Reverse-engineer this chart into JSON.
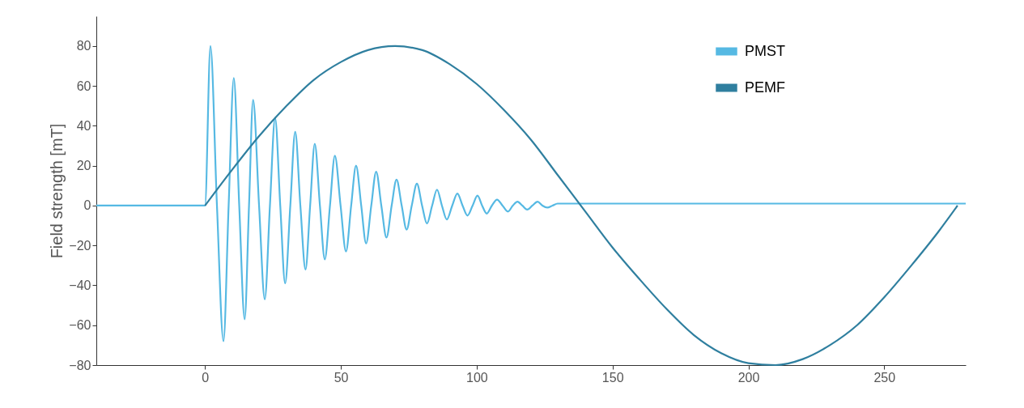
{
  "chart_data": {
    "type": "line",
    "ylabel": "Field strength [mT]",
    "xlim": [
      -40,
      280
    ],
    "ylim": [
      -80,
      95
    ],
    "xticks": [
      0,
      50,
      100,
      150,
      200,
      250
    ],
    "yticks": [
      -80,
      -60,
      -40,
      -20,
      0,
      20,
      40,
      60,
      80
    ],
    "grid": false,
    "legend": "top right",
    "series": [
      {
        "name": "PMST",
        "color": "#56b9e3",
        "x": [
          -40,
          0,
          2,
          4.4,
          6.8,
          8.7,
          10.6,
          12.6,
          14.6,
          16.2,
          17.7,
          19.9,
          22,
          23.9,
          25.8,
          27.7,
          29.5,
          31.4,
          33.2,
          35.1,
          37,
          38.7,
          40.4,
          42.3,
          44.1,
          46,
          47.8,
          49.9,
          51.9,
          53.8,
          55.6,
          57.5,
          59.3,
          61.2,
          63,
          64.9,
          66.8,
          68.7,
          70.5,
          72.4,
          74.2,
          76.1,
          78,
          79.9,
          81.7,
          83.6,
          85.4,
          87.2,
          89,
          91,
          92.9,
          94.8,
          96.6,
          98.5,
          100.3,
          102,
          103.7,
          105.6,
          107.5,
          109.5,
          111.5,
          113.3,
          115,
          116.8,
          118.6,
          120.5,
          122.4,
          124.2,
          126,
          127.9,
          129.8,
          132,
          280
        ],
        "values": [
          0,
          0,
          80,
          0,
          -68,
          0,
          64,
          0,
          -57,
          0,
          53,
          0,
          -47,
          0,
          44,
          0,
          -39,
          0,
          37,
          0,
          -32,
          0,
          31,
          0,
          -27,
          0,
          25,
          0,
          -23,
          0,
          20,
          0,
          -19,
          0,
          17,
          0,
          -16,
          0,
          13,
          0,
          -12,
          0,
          11,
          0,
          -9,
          0,
          8,
          0,
          -7,
          0,
          6,
          0,
          -5,
          0,
          5,
          0,
          -4,
          0,
          3,
          0,
          -3,
          0,
          2,
          0,
          -2,
          0,
          2,
          0,
          -1,
          0,
          1,
          1,
          1
        ]
      },
      {
        "name": "PEMF",
        "color": "#2f7f9f",
        "x": [
          0,
          10,
          20,
          30,
          40,
          50,
          60,
          70,
          80,
          90,
          100,
          110,
          120,
          130,
          140,
          150,
          160,
          170,
          180,
          190,
          200,
          210,
          220,
          230,
          240,
          250,
          260,
          270,
          277
        ],
        "values": [
          0,
          18,
          35,
          50,
          63,
          72,
          78,
          80,
          78,
          71,
          61,
          48,
          33,
          15,
          -3,
          -21,
          -37,
          -52,
          -65,
          -74,
          -79,
          -80,
          -77,
          -70,
          -60,
          -46,
          -30,
          -13,
          0
        ]
      }
    ]
  }
}
